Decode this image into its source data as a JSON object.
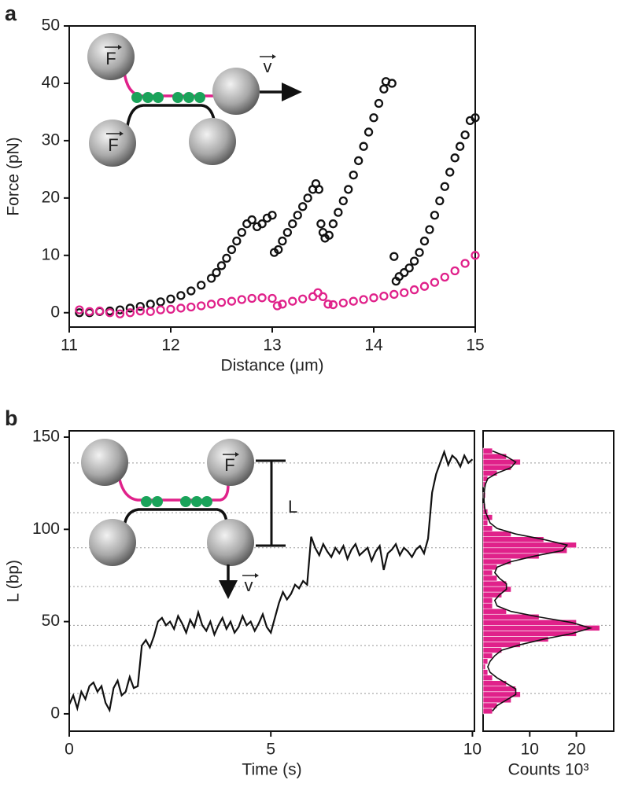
{
  "chart_data": [
    {
      "type": "scatter",
      "panel": "a",
      "x_label": "Distance (μm)",
      "y_label": "Force (pN)",
      "xlim": [
        11,
        15
      ],
      "ylim": [
        -2.5,
        50
      ],
      "xticks": [
        11,
        12,
        13,
        14,
        15
      ],
      "yticks": [
        0,
        10,
        20,
        30,
        40,
        50
      ],
      "annotations": [
        "F",
        "F",
        "v"
      ],
      "series": [
        {
          "color": "#111111",
          "x": [
            11.1,
            11.2,
            11.3,
            11.4,
            11.5,
            11.6,
            11.7,
            11.8,
            11.9,
            12.0,
            12.1,
            12.2,
            12.3,
            12.4,
            12.45,
            12.5,
            12.55,
            12.6,
            12.65,
            12.7,
            12.75,
            12.8,
            12.85,
            12.9,
            12.95,
            13.0,
            13.02,
            13.06,
            13.1,
            13.15,
            13.2,
            13.25,
            13.3,
            13.35,
            13.4,
            13.43,
            13.46,
            13.48,
            13.5,
            13.52,
            13.56,
            13.6,
            13.65,
            13.7,
            13.75,
            13.8,
            13.85,
            13.9,
            13.95,
            14.0,
            14.05,
            14.1,
            14.12,
            14.18,
            14.2,
            14.22,
            14.25,
            14.3,
            14.35,
            14.4,
            14.45,
            14.5,
            14.55,
            14.6,
            14.65,
            14.7,
            14.75,
            14.8,
            14.85,
            14.9,
            14.95,
            15.0
          ],
          "values": [
            0,
            0,
            0.2,
            0.3,
            0.5,
            0.8,
            1.1,
            1.5,
            1.9,
            2.4,
            3.0,
            3.8,
            4.8,
            6.0,
            7,
            8.2,
            9.5,
            11,
            12.5,
            14,
            15.5,
            16.2,
            15,
            15.5,
            16.5,
            17,
            10.5,
            11,
            12.5,
            14,
            15.5,
            17,
            18.5,
            20,
            21.5,
            22.5,
            21.5,
            15.5,
            14,
            13,
            13.5,
            15.5,
            17.5,
            19.5,
            21.5,
            24,
            26.5,
            29,
            31.5,
            34,
            36.5,
            39,
            40.3,
            40,
            9.8,
            5.5,
            6.3,
            7,
            7.8,
            9,
            10.5,
            12.5,
            14.5,
            17,
            19.5,
            22,
            24.5,
            27,
            29,
            31,
            33.5,
            34
          ]
        },
        {
          "color": "#e0218a",
          "x": [
            11.1,
            11.2,
            11.3,
            11.4,
            11.5,
            11.6,
            11.7,
            11.8,
            11.9,
            12.0,
            12.1,
            12.2,
            12.3,
            12.4,
            12.5,
            12.6,
            12.7,
            12.8,
            12.9,
            13.0,
            13.05,
            13.1,
            13.2,
            13.3,
            13.4,
            13.45,
            13.5,
            13.55,
            13.6,
            13.7,
            13.8,
            13.9,
            14.0,
            14.1,
            14.2,
            14.3,
            14.4,
            14.5,
            14.6,
            14.7,
            14.8,
            14.9,
            15.0
          ],
          "values": [
            0.5,
            0.2,
            0.3,
            0,
            -0.2,
            0,
            0.3,
            0.2,
            0.5,
            0.6,
            0.8,
            1.0,
            1.2,
            1.5,
            1.8,
            2.0,
            2.3,
            2.5,
            2.6,
            2.5,
            1.2,
            1.5,
            2.0,
            2.4,
            2.8,
            3.5,
            2.8,
            1.5,
            1.4,
            1.7,
            2.0,
            2.3,
            2.6,
            2.9,
            3.2,
            3.5,
            4.0,
            4.6,
            5.3,
            6.2,
            7.3,
            8.6,
            10
          ]
        }
      ]
    },
    {
      "type": "line",
      "panel": "b",
      "x_label": "Time (s)",
      "y_label": "L (bp)",
      "xlim": [
        0,
        10.05
      ],
      "ylim": [
        -9.4,
        153.4
      ],
      "xticks": [
        0,
        5,
        10
      ],
      "yticks": [
        0,
        50,
        100,
        150
      ],
      "color": "#111111",
      "reference_lines": [
        136,
        109,
        90,
        69,
        48,
        37,
        11
      ],
      "annotations": [
        "F",
        "v",
        "L"
      ],
      "x": [
        0,
        0.1,
        0.2,
        0.3,
        0.4,
        0.5,
        0.6,
        0.7,
        0.8,
        0.9,
        1.0,
        1.1,
        1.2,
        1.3,
        1.4,
        1.5,
        1.6,
        1.7,
        1.8,
        1.9,
        2.0,
        2.1,
        2.2,
        2.3,
        2.4,
        2.5,
        2.6,
        2.7,
        2.8,
        2.9,
        3.0,
        3.1,
        3.2,
        3.3,
        3.4,
        3.5,
        3.6,
        3.7,
        3.8,
        3.9,
        4.0,
        4.1,
        4.2,
        4.3,
        4.4,
        4.5,
        4.6,
        4.7,
        4.8,
        4.9,
        5.0,
        5.1,
        5.2,
        5.3,
        5.4,
        5.5,
        5.6,
        5.7,
        5.8,
        5.9,
        6.0,
        6.1,
        6.2,
        6.3,
        6.4,
        6.5,
        6.6,
        6.7,
        6.8,
        6.9,
        7.0,
        7.1,
        7.2,
        7.3,
        7.4,
        7.5,
        7.6,
        7.7,
        7.8,
        7.9,
        8.0,
        8.1,
        8.2,
        8.3,
        8.4,
        8.5,
        8.6,
        8.7,
        8.8,
        8.9,
        9.0,
        9.1,
        9.2,
        9.3,
        9.4,
        9.5,
        9.6,
        9.7,
        9.8,
        9.9,
        10.0
      ],
      "values": [
        5,
        10,
        3,
        12,
        8,
        15,
        17,
        12,
        15,
        6,
        2,
        14,
        18,
        10,
        12,
        20,
        14,
        15,
        37,
        40,
        36,
        42,
        50,
        52,
        48,
        50,
        46,
        53,
        49,
        44,
        51,
        47,
        55,
        48,
        45,
        50,
        43,
        48,
        52,
        46,
        50,
        44,
        47,
        53,
        48,
        50,
        45,
        49,
        54,
        47,
        44,
        52,
        60,
        66,
        62,
        65,
        70,
        68,
        72,
        70,
        96,
        90,
        86,
        92,
        88,
        85,
        90,
        87,
        91,
        84,
        89,
        92,
        86,
        88,
        90,
        83,
        88,
        91,
        78,
        87,
        89,
        92,
        86,
        90,
        88,
        85,
        89,
        91,
        87,
        95,
        120,
        130,
        136,
        142,
        135,
        140,
        138,
        134,
        140,
        136,
        138
      ]
    },
    {
      "type": "histogram",
      "x_label": "Counts 10³",
      "xlim": [
        0,
        28
      ],
      "ylim": [
        -9.4,
        153.4
      ],
      "xticks": [
        10,
        20
      ],
      "color": "#e0218a",
      "bins": [
        0,
        3,
        6,
        9,
        12,
        15,
        18,
        21,
        24,
        27,
        30,
        33,
        36,
        39,
        42,
        45,
        48,
        51,
        54,
        57,
        60,
        63,
        66,
        69,
        72,
        75,
        78,
        81,
        84,
        87,
        90,
        93,
        96,
        99,
        102,
        105,
        108,
        111,
        114,
        117,
        120,
        123,
        126,
        129,
        132,
        135,
        138,
        141,
        144
      ],
      "values": [
        2,
        3,
        6,
        8,
        7,
        5,
        2,
        1,
        0.5,
        1,
        2,
        4,
        8,
        14,
        20,
        25,
        20,
        12,
        5,
        2,
        2,
        4,
        6,
        5,
        3,
        2,
        3,
        6,
        12,
        18,
        20,
        13,
        6,
        2,
        1,
        2,
        1,
        0.5,
        0,
        0.5,
        0,
        0.5,
        1,
        3,
        6,
        8,
        5,
        2
      ],
      "fit": {
        "color": "#111111",
        "values": [
          2,
          3,
          5,
          7,
          7,
          5,
          3,
          1.5,
          1,
          1.5,
          2.5,
          4,
          8,
          13,
          19,
          23,
          19,
          12,
          6,
          3,
          2.5,
          3.5,
          5,
          5,
          3.5,
          2.5,
          3,
          6,
          11,
          17,
          18,
          13,
          7,
          3,
          1.5,
          1,
          0.5,
          0.3,
          0.2,
          0.2,
          0.3,
          0.5,
          1,
          3,
          6,
          7,
          5,
          2
        ]
      }
    }
  ]
}
